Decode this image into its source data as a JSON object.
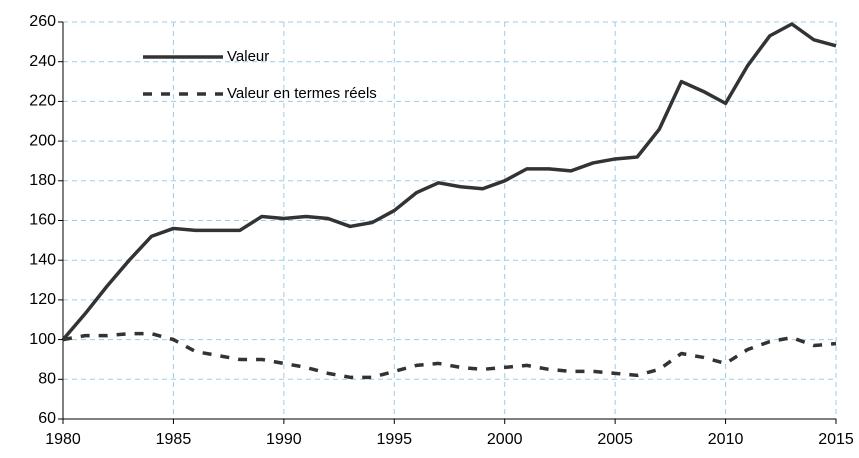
{
  "chart_data": {
    "type": "line",
    "x": [
      1980,
      1981,
      1982,
      1983,
      1984,
      1985,
      1986,
      1987,
      1988,
      1989,
      1990,
      1991,
      1992,
      1993,
      1994,
      1995,
      1996,
      1997,
      1998,
      1999,
      2000,
      2001,
      2002,
      2003,
      2004,
      2005,
      2006,
      2007,
      2008,
      2009,
      2010,
      2011,
      2012,
      2013,
      2014,
      2015
    ],
    "series": [
      {
        "name": "Valeur",
        "color": "#333333",
        "linestyle": "solid",
        "values": [
          100,
          113,
          127,
          140,
          152,
          156,
          155,
          155,
          155,
          162,
          161,
          162,
          161,
          157,
          159,
          165,
          174,
          179,
          177,
          176,
          180,
          186,
          186,
          185,
          189,
          191,
          192,
          206,
          230,
          225,
          219,
          238,
          253,
          259,
          251,
          248
        ]
      },
      {
        "name": "Valeur en termes réels",
        "color": "#333333",
        "linestyle": "dashed",
        "values": [
          100,
          102,
          102,
          103,
          103,
          100,
          94,
          92,
          90,
          90,
          88,
          86,
          83,
          81,
          81,
          84,
          87,
          88,
          86,
          85,
          86,
          87,
          85,
          84,
          84,
          83,
          82,
          85,
          93,
          91,
          88,
          95,
          99,
          101,
          97,
          98
        ]
      }
    ],
    "xlim": [
      1980,
      2015
    ],
    "xticks": [
      1980,
      1985,
      1990,
      1995,
      2000,
      2005,
      2010,
      2015
    ],
    "ylim": [
      60,
      260
    ],
    "yticks": [
      60,
      80,
      100,
      120,
      140,
      160,
      180,
      200,
      220,
      240,
      260
    ],
    "grid": true,
    "legend": "upper-left"
  }
}
